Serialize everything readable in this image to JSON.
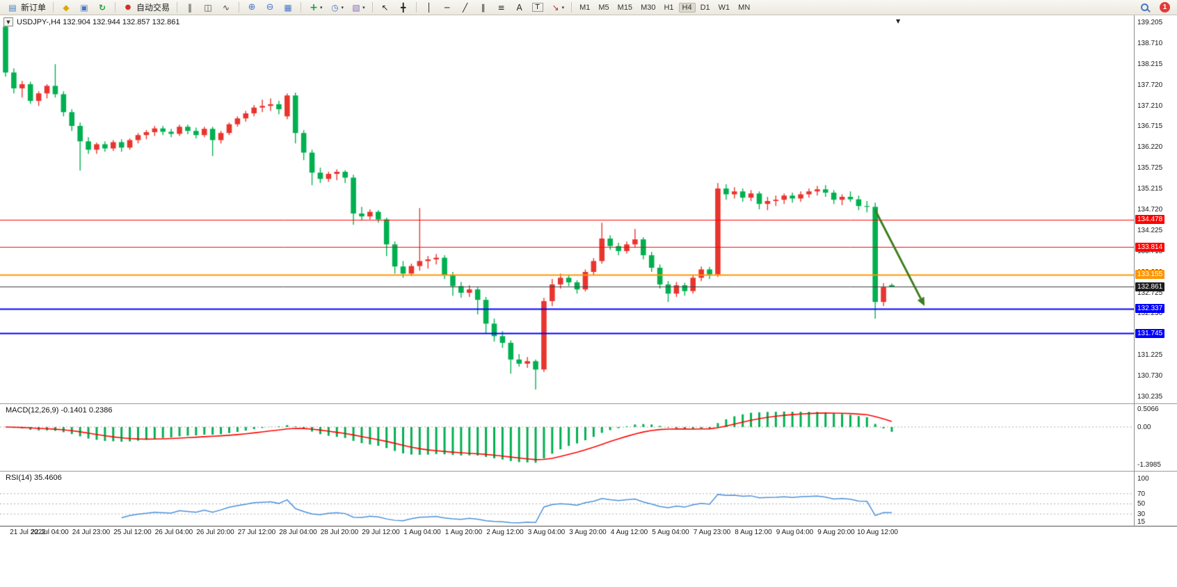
{
  "toolbar": {
    "new_order_label": "新订单",
    "auto_trading_label": "自动交易",
    "timeframes": [
      "M1",
      "M5",
      "M15",
      "M30",
      "H1",
      "H4",
      "D1",
      "W1",
      "MN"
    ],
    "active_timeframe": "H4",
    "badge_count": "1",
    "icons": {
      "new_order": "▤",
      "metaeditor": "◆",
      "market_watch": "▣",
      "refresh": "↻",
      "autotrade": "●",
      "bar_chart": "‖",
      "candle_chart": "◫",
      "line_chart": "∿",
      "zoom_in": "⊕",
      "zoom_out": "⊖",
      "tile_windows": "▦",
      "indicators": "+",
      "periods": "◷",
      "templates": "▧",
      "caret": "▾",
      "cursor": "↖",
      "crosshair": "╋",
      "vertical_line": "│",
      "horizontal_line": "─",
      "trendline": "╱",
      "channel": "∥",
      "fibonacci": "≡",
      "text_tool": "A",
      "label_tool": "T",
      "arrows_tool": "↘"
    }
  },
  "chart": {
    "title": "USDJPY-,H4 132.904 132.944 132.857 132.861",
    "dropdown_glyph": "▼",
    "shift_marker": "▼",
    "macd_label": "MACD(12,26,9) -0.1401 0.2386",
    "rsi_label": "RSI(14) 35.4606"
  },
  "colors": {
    "up_candle": "#e8352e",
    "down_candle": "#00b050",
    "macd_hist": "#00b050",
    "macd_signal": "#ff0000",
    "rsi_line": "#4a90d9",
    "price_line": "#3c3c3c",
    "arrow_green": "#3e7d1e",
    "badge_red": "#e53935",
    "level_dotted": "#aaaaaa"
  },
  "chart_data": {
    "type": "candlestick",
    "symbol_period": "USDJPY-,H4",
    "ohlc_display": [
      "132.904",
      "132.944",
      "132.857",
      "132.861"
    ],
    "grid": "off",
    "price_range": [
      139.205,
      130.235
    ],
    "price_axis": [
      "139.205",
      "138.710",
      "138.215",
      "137.720",
      "137.210",
      "136.715",
      "136.220",
      "135.725",
      "135.215",
      "134.720",
      "134.225",
      "133.715",
      "133.220",
      "132.725",
      "132.230",
      "131.735",
      "131.225",
      "130.730",
      "130.235"
    ],
    "time_axis": [
      "21 Jul 2022",
      "22 Jul 04:00",
      "24 Jul 23:00",
      "25 Jul 12:00",
      "26 Jul 04:00",
      "26 Jul 20:00",
      "27 Jul 12:00",
      "28 Jul 04:00",
      "28 Jul 20:00",
      "29 Jul 12:00",
      "1 Aug 04:00",
      "1 Aug 20:00",
      "2 Aug 12:00",
      "3 Aug 04:00",
      "3 Aug 20:00",
      "4 Aug 12:00",
      "5 Aug 04:00",
      "7 Aug 23:00",
      "8 Aug 12:00",
      "9 Aug 04:00",
      "9 Aug 20:00",
      "10 Aug 12:00"
    ],
    "hlines": [
      {
        "price": 134.478,
        "label": "134.478",
        "color": "#ff0000",
        "width": 1
      },
      {
        "price": 133.814,
        "label": "133.814",
        "color": "#ff0000",
        "width": 1
      },
      {
        "price": 133.155,
        "label": "133.155",
        "color": "#ff9500",
        "width": 2
      },
      {
        "price": 132.861,
        "label": "132.861",
        "color": "#3c3c3c",
        "tag": "#1c1c1c",
        "width": 1
      },
      {
        "price": 132.337,
        "label": "132.337",
        "color": "#0000ff",
        "width": 2
      },
      {
        "price": 131.745,
        "label": "131.745",
        "color": "#0000ff",
        "width": 2
      }
    ],
    "trend_arrow": {
      "from": {
        "i": 105,
        "p": 134.7
      },
      "to": {
        "i": 110.5,
        "p": 132.58
      },
      "color": "#3e7d1e"
    },
    "indicators": [
      {
        "name": "MACD",
        "params": "12,26,9",
        "label": "MACD(12,26,9) -0.1401 0.2386",
        "values": [
          "-0.1401",
          "0.2386"
        ],
        "scale": [
          "0.5066",
          "0.00",
          "-1.3985"
        ]
      },
      {
        "name": "RSI",
        "params": "14",
        "label": "RSI(14) 35.4606",
        "values": [
          "35.4606"
        ],
        "scale": [
          "100",
          "70",
          "50",
          "30",
          "15"
        ],
        "levels": [
          70,
          50,
          30
        ]
      }
    ],
    "candles": [
      [
        139.1,
        139.2,
        137.9,
        138.0
      ],
      [
        138.0,
        138.1,
        137.5,
        137.62
      ],
      [
        137.62,
        137.8,
        137.4,
        137.72
      ],
      [
        137.72,
        137.78,
        137.25,
        137.32
      ],
      [
        137.32,
        137.55,
        137.2,
        137.5
      ],
      [
        137.5,
        137.72,
        137.38,
        137.68
      ],
      [
        137.68,
        138.2,
        137.4,
        137.48
      ],
      [
        137.48,
        137.55,
        136.95,
        137.05
      ],
      [
        137.05,
        137.12,
        136.6,
        136.72
      ],
      [
        136.72,
        136.8,
        135.65,
        136.35
      ],
      [
        136.35,
        136.45,
        136.05,
        136.15
      ],
      [
        136.15,
        136.32,
        136.05,
        136.28
      ],
      [
        136.28,
        136.35,
        136.1,
        136.18
      ],
      [
        136.18,
        136.38,
        136.12,
        136.33
      ],
      [
        136.33,
        136.4,
        136.1,
        136.2
      ],
      [
        136.2,
        136.42,
        136.15,
        136.38
      ],
      [
        136.38,
        136.55,
        136.3,
        136.5
      ],
      [
        136.5,
        136.62,
        136.4,
        136.57
      ],
      [
        136.57,
        136.72,
        136.48,
        136.66
      ],
      [
        136.66,
        136.72,
        136.5,
        136.58
      ],
      [
        136.58,
        136.65,
        136.45,
        136.53
      ],
      [
        136.53,
        136.75,
        136.48,
        136.7
      ],
      [
        136.7,
        136.75,
        136.52,
        136.6
      ],
      [
        136.6,
        136.68,
        136.42,
        136.5
      ],
      [
        136.5,
        136.7,
        136.45,
        136.65
      ],
      [
        136.65,
        136.7,
        136.0,
        136.38
      ],
      [
        136.38,
        136.6,
        136.3,
        136.55
      ],
      [
        136.55,
        136.8,
        136.5,
        136.76
      ],
      [
        136.76,
        136.95,
        136.7,
        136.9
      ],
      [
        136.9,
        137.08,
        136.82,
        137.02
      ],
      [
        137.02,
        137.22,
        136.95,
        137.16
      ],
      [
        137.16,
        137.35,
        137.05,
        137.2
      ],
      [
        137.2,
        137.38,
        137.08,
        137.24
      ],
      [
        137.24,
        137.32,
        137.0,
        137.12
      ],
      [
        136.95,
        137.5,
        136.88,
        137.45
      ],
      [
        137.45,
        137.52,
        136.3,
        136.55
      ],
      [
        136.55,
        136.62,
        135.9,
        136.08
      ],
      [
        136.08,
        136.15,
        135.3,
        135.6
      ],
      [
        135.6,
        135.72,
        135.35,
        135.45
      ],
      [
        135.45,
        135.62,
        135.38,
        135.57
      ],
      [
        135.57,
        135.68,
        135.42,
        135.62
      ],
      [
        135.62,
        135.66,
        135.35,
        135.48
      ],
      [
        135.48,
        135.55,
        134.35,
        134.62
      ],
      [
        134.62,
        134.78,
        134.45,
        134.55
      ],
      [
        134.55,
        134.72,
        134.48,
        134.66
      ],
      [
        134.66,
        134.7,
        134.4,
        134.48
      ],
      [
        134.48,
        134.52,
        133.6,
        133.88
      ],
      [
        133.88,
        133.95,
        133.18,
        133.35
      ],
      [
        133.35,
        133.48,
        133.08,
        133.18
      ],
      [
        133.18,
        133.42,
        133.12,
        133.36
      ],
      [
        133.36,
        134.75,
        133.25,
        133.48
      ],
      [
        133.48,
        133.6,
        133.3,
        133.52
      ],
      [
        133.52,
        133.65,
        133.4,
        133.56
      ],
      [
        133.56,
        133.62,
        133.05,
        133.15
      ],
      [
        133.15,
        133.22,
        132.65,
        132.88
      ],
      [
        132.88,
        132.98,
        132.6,
        132.72
      ],
      [
        132.72,
        132.9,
        132.62,
        132.8
      ],
      [
        132.8,
        132.85,
        132.2,
        132.55
      ],
      [
        132.55,
        132.62,
        131.75,
        131.98
      ],
      [
        131.98,
        132.1,
        131.55,
        131.68
      ],
      [
        131.68,
        131.8,
        131.4,
        131.52
      ],
      [
        131.52,
        131.58,
        130.78,
        131.12
      ],
      [
        131.12,
        131.25,
        130.95,
        131.02
      ],
      [
        131.02,
        131.18,
        130.92,
        131.08
      ],
      [
        131.08,
        131.12,
        130.4,
        130.88
      ],
      [
        130.88,
        132.6,
        130.82,
        132.52
      ],
      [
        132.52,
        133.05,
        132.4,
        132.92
      ],
      [
        132.92,
        133.18,
        132.82,
        133.08
      ],
      [
        133.08,
        133.15,
        132.88,
        132.97
      ],
      [
        132.97,
        133.02,
        132.7,
        132.8
      ],
      [
        132.8,
        133.28,
        132.75,
        133.22
      ],
      [
        133.22,
        133.55,
        133.15,
        133.48
      ],
      [
        133.48,
        134.4,
        133.42,
        134.02
      ],
      [
        134.02,
        134.1,
        133.75,
        133.84
      ],
      [
        133.84,
        133.92,
        133.62,
        133.72
      ],
      [
        133.72,
        133.95,
        133.66,
        133.88
      ],
      [
        133.88,
        134.25,
        133.8,
        134.0
      ],
      [
        134.0,
        134.05,
        133.52,
        133.62
      ],
      [
        133.62,
        133.7,
        133.22,
        133.32
      ],
      [
        133.32,
        133.4,
        132.82,
        132.92
      ],
      [
        132.92,
        133.0,
        132.5,
        132.7
      ],
      [
        132.7,
        132.98,
        132.62,
        132.9
      ],
      [
        132.9,
        132.96,
        132.65,
        132.76
      ],
      [
        132.76,
        133.15,
        132.7,
        133.08
      ],
      [
        133.08,
        133.35,
        133.0,
        133.28
      ],
      [
        133.28,
        133.34,
        133.05,
        133.16
      ],
      [
        133.16,
        135.35,
        133.1,
        135.22
      ],
      [
        135.22,
        135.32,
        134.95,
        135.08
      ],
      [
        135.08,
        135.25,
        134.98,
        135.15
      ],
      [
        135.15,
        135.22,
        134.9,
        135.0
      ],
      [
        135.0,
        135.18,
        134.92,
        135.1
      ],
      [
        135.1,
        135.15,
        134.72,
        134.85
      ],
      [
        134.85,
        135.02,
        134.7,
        134.92
      ],
      [
        134.92,
        135.05,
        134.8,
        134.95
      ],
      [
        134.95,
        135.1,
        134.85,
        135.05
      ],
      [
        135.05,
        135.12,
        134.88,
        134.98
      ],
      [
        134.98,
        135.15,
        134.9,
        135.08
      ],
      [
        135.08,
        135.22,
        135.0,
        135.15
      ],
      [
        135.15,
        135.28,
        135.05,
        135.2
      ],
      [
        135.2,
        135.3,
        135.02,
        135.12
      ],
      [
        135.12,
        135.18,
        134.85,
        134.95
      ],
      [
        134.95,
        135.08,
        134.82,
        135.02
      ],
      [
        135.02,
        135.15,
        134.9,
        134.96
      ],
      [
        134.96,
        135.05,
        134.7,
        134.8
      ],
      [
        134.8,
        134.92,
        134.65,
        134.78
      ],
      [
        134.78,
        134.88,
        132.1,
        132.5
      ],
      [
        132.5,
        132.95,
        132.4,
        132.85
      ],
      [
        132.904,
        132.944,
        132.857,
        132.861
      ]
    ]
  }
}
